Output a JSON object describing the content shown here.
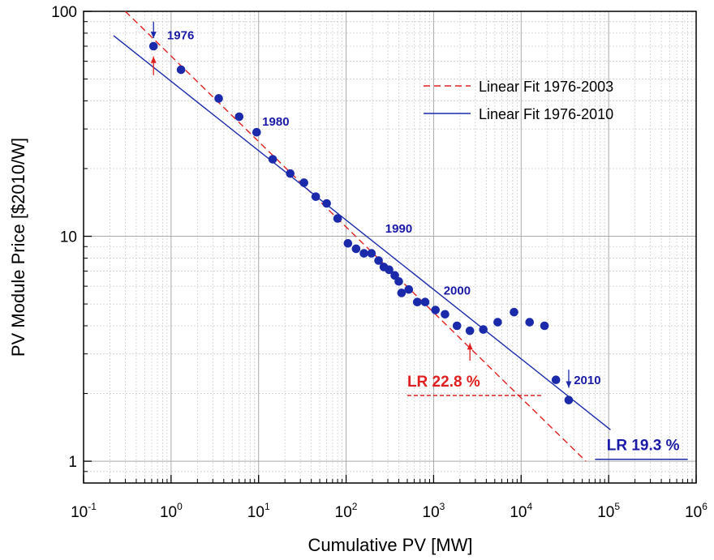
{
  "chart_data": {
    "type": "scatter",
    "title": "",
    "xlabel": "Cumulative PV [MW]",
    "ylabel": "PV Module Price [$2010/W]",
    "xscale": "log",
    "yscale": "log",
    "xlim": [
      0.1,
      1000000
    ],
    "ylim": [
      0.8,
      100
    ],
    "grid": true,
    "x_ticks": [
      {
        "base": "10",
        "exp": "-1",
        "value": 0.1
      },
      {
        "base": "10",
        "exp": "0",
        "value": 1
      },
      {
        "base": "10",
        "exp": "1",
        "value": 10
      },
      {
        "base": "10",
        "exp": "2",
        "value": 100
      },
      {
        "base": "10",
        "exp": "3",
        "value": 1000
      },
      {
        "base": "10",
        "exp": "4",
        "value": 10000
      },
      {
        "base": "10",
        "exp": "5",
        "value": 100000
      },
      {
        "base": "10",
        "exp": "6",
        "value": 1000000
      }
    ],
    "y_ticks": [
      {
        "label": "1",
        "value": 1
      },
      {
        "label": "10",
        "value": 10
      },
      {
        "label": "100",
        "value": 100
      }
    ],
    "points": [
      {
        "x": 0.63,
        "y": 70.0
      },
      {
        "x": 1.3,
        "y": 55.0
      },
      {
        "x": 3.5,
        "y": 41.0
      },
      {
        "x": 6.0,
        "y": 34.0
      },
      {
        "x": 9.5,
        "y": 29.0
      },
      {
        "x": 14.5,
        "y": 22.0
      },
      {
        "x": 23.0,
        "y": 19.0
      },
      {
        "x": 33.0,
        "y": 17.3
      },
      {
        "x": 45.0,
        "y": 15.0
      },
      {
        "x": 60.0,
        "y": 14.0
      },
      {
        "x": 80.0,
        "y": 12.0
      },
      {
        "x": 105.0,
        "y": 9.3
      },
      {
        "x": 130.0,
        "y": 8.8
      },
      {
        "x": 160.0,
        "y": 8.4
      },
      {
        "x": 195.0,
        "y": 8.4
      },
      {
        "x": 235.0,
        "y": 7.8
      },
      {
        "x": 270.0,
        "y": 7.3
      },
      {
        "x": 310.0,
        "y": 7.1
      },
      {
        "x": 360.0,
        "y": 6.7
      },
      {
        "x": 400.0,
        "y": 6.3
      },
      {
        "x": 430.0,
        "y": 5.6
      },
      {
        "x": 520.0,
        "y": 5.8
      },
      {
        "x": 650.0,
        "y": 5.1
      },
      {
        "x": 800.0,
        "y": 5.1
      },
      {
        "x": 1050.0,
        "y": 4.7
      },
      {
        "x": 1350.0,
        "y": 4.5
      },
      {
        "x": 1850.0,
        "y": 4.0
      },
      {
        "x": 2600.0,
        "y": 3.8
      },
      {
        "x": 3700.0,
        "y": 3.85
      },
      {
        "x": 5400.0,
        "y": 4.15
      },
      {
        "x": 8300.0,
        "y": 4.6
      },
      {
        "x": 12500.0,
        "y": 4.15
      },
      {
        "x": 18500.0,
        "y": 4.0
      },
      {
        "x": 25000.0,
        "y": 2.3
      },
      {
        "x": 35000.0,
        "y": 1.87
      }
    ],
    "point_color": "#1a2aaa",
    "fits": [
      {
        "name": "Linear Fit 1976-2003",
        "color": "#e02020",
        "dash": true,
        "from": [
          0.3,
          100
        ],
        "to": [
          55000,
          1.0
        ]
      },
      {
        "name": "Linear Fit 1976-2010",
        "color": "#1a2aaa",
        "dash": false,
        "from": [
          0.22,
          78
        ],
        "to": [
          105000,
          1.38
        ]
      }
    ],
    "legend_position": "top-right",
    "year_labels": [
      {
        "text": "1976",
        "x": 0.9,
        "y": 75
      },
      {
        "text": "1980",
        "x": 11,
        "y": 31
      },
      {
        "text": "1990",
        "x": 280,
        "y": 10.4
      },
      {
        "text": "2000",
        "x": 1300,
        "y": 5.5
      },
      {
        "text": "2010",
        "x": 40000,
        "y": 2.2
      }
    ],
    "arrows": [
      {
        "x": 0.63,
        "y_from": 90,
        "y_to": 76,
        "color": "#1a2aaa"
      },
      {
        "x": 0.63,
        "y_from": 52,
        "y_to": 63,
        "color": "#e02020"
      },
      {
        "x": 2600,
        "y_from": 2.8,
        "y_to": 3.35,
        "color": "#e02020"
      },
      {
        "x": 35000,
        "y_from": 2.55,
        "y_to": 2.12,
        "color": "#1a2aaa"
      }
    ],
    "annotations": [
      {
        "text": "LR 22.8 %",
        "style": "red",
        "x": 500,
        "y": 2.15,
        "underline_from": 500,
        "underline_to": 17000,
        "underline_y": 1.96
      },
      {
        "text": "LR 19.3 %",
        "style": "blue",
        "x": 95000,
        "y": 1.12,
        "underline_from": 70000,
        "underline_to": 800000,
        "underline_y": 1.02
      }
    ]
  }
}
